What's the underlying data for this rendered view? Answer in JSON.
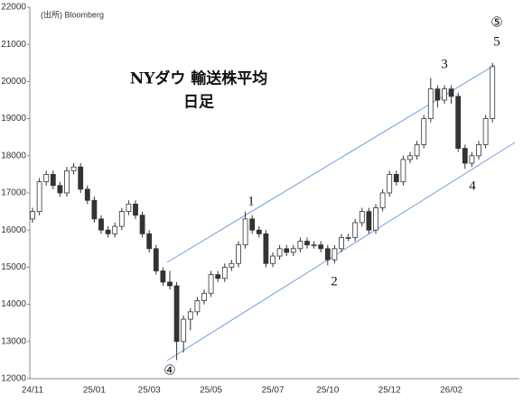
{
  "chart_data": {
    "type": "candlestick",
    "title": "NYダウ 輸送株平均",
    "subtitle": "日足",
    "source": "(出所) Bloomberg",
    "annotations": [
      "1",
      "2",
      "3",
      "4",
      "⑤",
      "5",
      "④"
    ],
    "categories": [
      "24/11",
      null,
      null,
      null,
      null,
      null,
      null,
      null,
      null,
      "25/01",
      null,
      null,
      null,
      null,
      null,
      null,
      null,
      "25/03",
      null,
      null,
      null,
      null,
      null,
      null,
      null,
      null,
      "25/05",
      null,
      null,
      null,
      null,
      null,
      null,
      null,
      null,
      "25/07",
      null,
      null,
      null,
      null,
      null,
      null,
      null,
      "25/10",
      null,
      null,
      null,
      null,
      null,
      null,
      null,
      null,
      "25/12",
      null,
      null,
      null,
      null,
      null,
      null,
      null,
      null,
      "26/02",
      null,
      null,
      null,
      null,
      null,
      null
    ],
    "open": [
      16300,
      16500,
      17300,
      17500,
      17200,
      17000,
      17600,
      17700,
      17100,
      16800,
      16300,
      16000,
      15900,
      16100,
      16500,
      16700,
      16400,
      15900,
      15500,
      14900,
      14600,
      14500,
      13000,
      13600,
      13800,
      14100,
      14300,
      14800,
      14700,
      15000,
      15100,
      15600,
      16300,
      16000,
      15900,
      15100,
      15300,
      15500,
      15400,
      15500,
      15700,
      15600,
      15600,
      15500,
      15200,
      15500,
      15800,
      15800,
      16200,
      16500,
      16000,
      16600,
      17000,
      17500,
      17300,
      17900,
      18000,
      18300,
      19000,
      19800,
      19500,
      19800,
      19600,
      18200,
      17800,
      18000,
      18300,
      19000
    ],
    "high": [
      16600,
      17400,
      17600,
      17600,
      17300,
      17700,
      17800,
      17800,
      17200,
      16900,
      16400,
      16100,
      16200,
      16600,
      16800,
      16800,
      16500,
      16000,
      15600,
      15000,
      14900,
      14600,
      13700,
      13900,
      14200,
      14400,
      14900,
      14900,
      15100,
      15200,
      15700,
      16500,
      16400,
      16100,
      16000,
      15400,
      15600,
      15600,
      15600,
      15800,
      15800,
      15700,
      15700,
      15600,
      15600,
      15900,
      15900,
      16300,
      16600,
      16600,
      16700,
      17100,
      17600,
      17600,
      18000,
      18100,
      18400,
      19100,
      20100,
      19900,
      19900,
      19900,
      19700,
      18300,
      18100,
      18400,
      19100,
      20500
    ],
    "low": [
      16200,
      16400,
      17200,
      17100,
      16900,
      16900,
      17500,
      17000,
      16700,
      16200,
      15900,
      15800,
      15800,
      16000,
      16400,
      16300,
      15800,
      15400,
      14800,
      14500,
      14400,
      12500,
      12700,
      13300,
      13700,
      14000,
      14200,
      14600,
      14600,
      14900,
      15000,
      15500,
      15900,
      15800,
      15000,
      15000,
      15200,
      15300,
      15300,
      15400,
      15500,
      15500,
      15400,
      15050,
      15100,
      15400,
      15700,
      15700,
      16100,
      15900,
      15900,
      16500,
      16900,
      17200,
      17200,
      17800,
      17900,
      18200,
      18900,
      19300,
      19400,
      19400,
      18100,
      17650,
      17700,
      17900,
      18200,
      18900
    ],
    "close": [
      16500,
      17300,
      17500,
      17200,
      17000,
      17600,
      17700,
      17100,
      16800,
      16300,
      16000,
      15900,
      16100,
      16500,
      16700,
      16400,
      15900,
      15500,
      14900,
      14600,
      14500,
      13000,
      13600,
      13800,
      14100,
      14300,
      14800,
      14700,
      15000,
      15100,
      15600,
      16300,
      16000,
      15900,
      15100,
      15300,
      15500,
      15400,
      15500,
      15700,
      15600,
      15600,
      15500,
      15200,
      15500,
      15800,
      15800,
      16200,
      16500,
      16000,
      16600,
      17000,
      17500,
      17300,
      17900,
      18000,
      18300,
      19000,
      19800,
      19500,
      19800,
      19600,
      18200,
      17800,
      18000,
      18300,
      19000,
      20400
    ],
    "up_color": "#ffffff",
    "down_color": "#333333",
    "ylim": [
      12000,
      22000
    ],
    "yticks": [
      12000,
      13000,
      14000,
      15000,
      16000,
      17000,
      18000,
      19000,
      20000,
      21000,
      22000
    ],
    "grid": false
  }
}
